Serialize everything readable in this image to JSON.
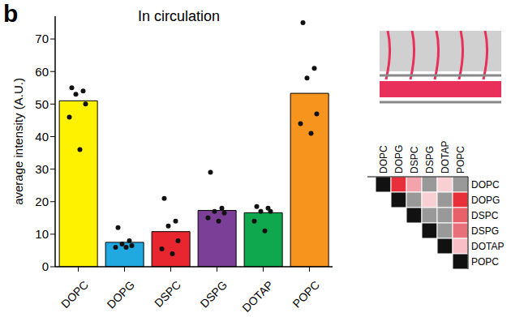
{
  "chart_data": [
    {
      "type": "bar",
      "title": "In circulation",
      "annotations": [
        "b"
      ],
      "y_label": "average intensity (A.U.)",
      "categories": [
        "DOPC",
        "DOPG",
        "DSPC",
        "DSPG",
        "DOTAP",
        "POPC"
      ],
      "values": [
        51,
        7.5,
        10.8,
        17.3,
        16.6,
        53.3
      ],
      "colors": [
        "#fff200",
        "#20a8e0",
        "#e8262f",
        "#7b3f98",
        "#10a84e",
        "#f7941d"
      ],
      "points": [
        [
          55,
          54,
          53,
          50,
          46,
          36
        ],
        [
          12,
          8,
          7,
          6.5,
          6,
          6
        ],
        [
          21,
          14,
          12.5,
          8,
          5.5,
          4
        ],
        [
          29,
          18,
          17,
          16.5,
          15,
          14
        ],
        [
          18.5,
          18,
          17,
          17,
          14,
          11
        ],
        [
          75,
          61,
          58,
          47,
          44,
          41
        ]
      ],
      "ylim": [
        0,
        77
      ],
      "yticks": [
        0,
        10,
        20,
        30,
        40,
        50,
        60,
        70
      ],
      "grid": false
    },
    {
      "type": "heatmap",
      "x": [
        "DOPC",
        "DOPG",
        "DSPC",
        "DSPG",
        "DOTAP",
        "POPC"
      ],
      "y": [
        "DOPC",
        "DOPG",
        "DSPC",
        "DSPG",
        "DOTAP",
        "POPC"
      ],
      "cells": [
        [
          "#111111",
          "#e8303a",
          "#f3a3ab",
          "#999999",
          "#f8d0d4",
          "#999999"
        ],
        [
          null,
          "#111111",
          "#999999",
          "#f8d0d4",
          "#999999",
          "#e8303a"
        ],
        [
          null,
          null,
          "#111111",
          "#999999",
          "#999999",
          "#e8606a"
        ],
        [
          null,
          null,
          null,
          "#111111",
          "#999999",
          "#e8707a"
        ],
        [
          null,
          null,
          null,
          null,
          "#111111",
          "#f8c0c6"
        ],
        [
          null,
          null,
          null,
          null,
          null,
          "#111111"
        ]
      ]
    }
  ]
}
